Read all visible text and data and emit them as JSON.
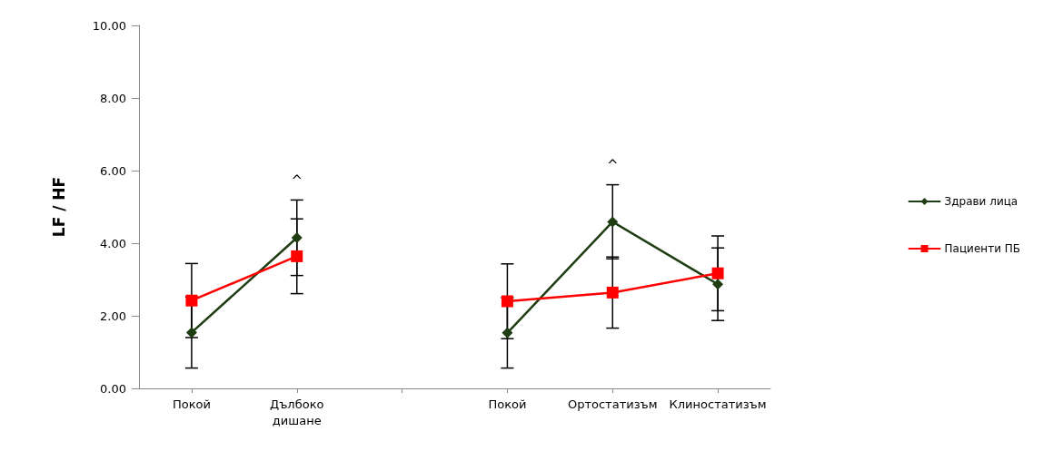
{
  "chart_data": {
    "type": "line",
    "ylabel": "LF / HF",
    "categories": [
      "Покой",
      "Дълбоко\nдишане",
      null,
      "Покой",
      "Ортостатизъм",
      "Клиностатизъм"
    ],
    "series": [
      {
        "name": "Здрави лица",
        "color": "#1f3d12",
        "marker": "diamond",
        "values": [
          1.54,
          4.15,
          null,
          1.53,
          4.59,
          2.87
        ],
        "errors": [
          0.98,
          1.04,
          null,
          0.97,
          1.02,
          1.0
        ]
      },
      {
        "name": "Пациенти ПБ",
        "color": "#ff0000",
        "marker": "square",
        "values": [
          2.42,
          3.64,
          null,
          2.4,
          2.64,
          3.17
        ],
        "errors": [
          1.02,
          1.03,
          null,
          1.03,
          0.98,
          1.03
        ]
      }
    ],
    "ylim": [
      0,
      10
    ],
    "yticks": [
      {
        "value": 0,
        "label": "0.00"
      },
      {
        "value": 2,
        "label": "2.00"
      },
      {
        "value": 4,
        "label": "4.00"
      },
      {
        "value": 6,
        "label": "6.00"
      },
      {
        "value": 8,
        "label": "8.00"
      },
      {
        "value": 10,
        "label": "10.00"
      }
    ],
    "annotations": [
      {
        "text": "^",
        "x": "Дълбоко\nдишане",
        "y": 5.19
      },
      {
        "text": "^",
        "x": "Ортостатизъм",
        "y": 5.61
      }
    ],
    "grid": false,
    "legend": "right"
  }
}
